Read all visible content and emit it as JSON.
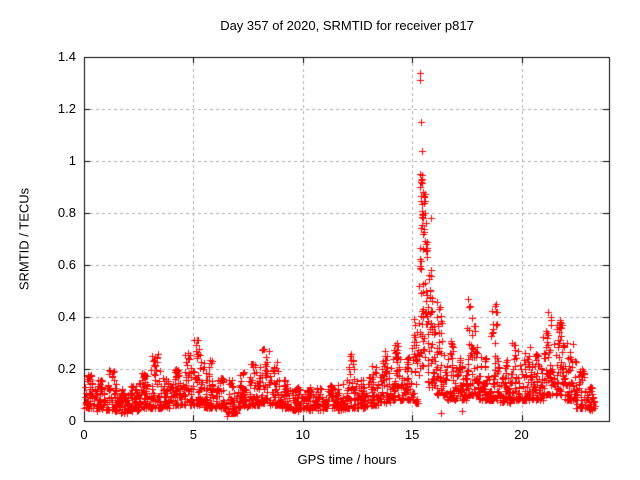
{
  "chart_data": {
    "type": "scatter",
    "title": "Day 357 of 2020, SRMTID for receiver p817",
    "xlabel": "GPS time / hours",
    "ylabel": "SRMTID / TECUs",
    "xlim": [
      0,
      24
    ],
    "ylim": [
      0,
      1.4
    ],
    "xticks": [
      0,
      5,
      10,
      15,
      20
    ],
    "xtick_labels": [
      "0",
      "5",
      "10",
      "15",
      "20"
    ],
    "yticks": [
      0,
      0.2,
      0.4,
      0.6,
      0.8,
      1.0,
      1.2,
      1.4
    ],
    "ytick_labels": [
      "0",
      "0.2",
      "0.4",
      "0.6",
      "0.8",
      "1",
      "1.2",
      "1.4"
    ],
    "grid": true,
    "legend": "none",
    "marker": "plus",
    "marker_size_px": 7,
    "colors": {
      "points": "#ff0000",
      "grid": "#b0b0b0",
      "axis": "#000000",
      "background": "#ffffff",
      "text": "#000000"
    },
    "seed": 7,
    "series": [
      {
        "name": "SRMTID",
        "representation": "density-bins",
        "bins_format": [
          "t_start_hours",
          "t_end_hours",
          "n_points",
          "y_min_TECU",
          "y_max_TECU",
          "skew_exponent"
        ],
        "bins": [
          [
            0.0,
            0.5,
            52,
            0.05,
            0.18,
            1.8
          ],
          [
            0.5,
            1.0,
            50,
            0.04,
            0.16,
            1.8
          ],
          [
            1.0,
            1.5,
            50,
            0.04,
            0.2,
            1.9
          ],
          [
            1.5,
            2.0,
            48,
            0.03,
            0.13,
            1.6
          ],
          [
            2.0,
            2.5,
            50,
            0.04,
            0.14,
            1.6
          ],
          [
            2.5,
            3.0,
            50,
            0.05,
            0.19,
            1.8
          ],
          [
            3.0,
            3.5,
            52,
            0.05,
            0.26,
            2.0
          ],
          [
            3.5,
            4.0,
            50,
            0.05,
            0.17,
            1.8
          ],
          [
            4.0,
            4.5,
            50,
            0.06,
            0.2,
            1.8
          ],
          [
            4.5,
            5.0,
            52,
            0.06,
            0.29,
            2.0
          ],
          [
            5.0,
            5.5,
            52,
            0.06,
            0.32,
            2.0
          ],
          [
            5.5,
            6.0,
            50,
            0.05,
            0.26,
            2.0
          ],
          [
            6.0,
            6.5,
            46,
            0.05,
            0.17,
            1.8
          ],
          [
            6.5,
            7.0,
            46,
            0.03,
            0.16,
            1.8
          ],
          [
            7.0,
            7.5,
            46,
            0.05,
            0.19,
            1.8
          ],
          [
            7.5,
            8.0,
            46,
            0.06,
            0.22,
            1.8
          ],
          [
            8.0,
            8.5,
            50,
            0.07,
            0.28,
            1.9
          ],
          [
            8.5,
            9.0,
            50,
            0.06,
            0.23,
            1.9
          ],
          [
            9.0,
            9.5,
            46,
            0.05,
            0.16,
            1.8
          ],
          [
            9.5,
            10.0,
            44,
            0.04,
            0.13,
            1.6
          ],
          [
            10.0,
            10.5,
            44,
            0.04,
            0.14,
            1.6
          ],
          [
            10.5,
            11.0,
            44,
            0.04,
            0.13,
            1.6
          ],
          [
            11.0,
            11.5,
            44,
            0.05,
            0.14,
            1.6
          ],
          [
            11.5,
            12.0,
            44,
            0.04,
            0.15,
            1.6
          ],
          [
            12.0,
            12.5,
            50,
            0.05,
            0.26,
            2.1
          ],
          [
            12.5,
            13.0,
            46,
            0.05,
            0.16,
            1.7
          ],
          [
            13.0,
            13.5,
            50,
            0.06,
            0.22,
            1.8
          ],
          [
            13.5,
            14.0,
            54,
            0.07,
            0.27,
            1.8
          ],
          [
            14.0,
            14.5,
            54,
            0.08,
            0.31,
            1.8
          ],
          [
            14.5,
            15.0,
            50,
            0.08,
            0.26,
            1.7
          ],
          [
            15.0,
            15.3,
            34,
            0.07,
            0.4,
            1.7
          ],
          [
            15.3,
            15.7,
            70,
            0.2,
            0.95,
            1.2
          ],
          [
            15.7,
            16.0,
            40,
            0.12,
            0.6,
            1.5
          ],
          [
            16.0,
            16.5,
            56,
            0.1,
            0.46,
            1.6
          ],
          [
            16.5,
            17.0,
            50,
            0.08,
            0.31,
            1.8
          ],
          [
            17.0,
            17.5,
            50,
            0.08,
            0.26,
            1.8
          ],
          [
            17.5,
            18.0,
            54,
            0.1,
            0.47,
            2.0
          ],
          [
            18.0,
            18.5,
            50,
            0.08,
            0.26,
            1.8
          ],
          [
            18.5,
            19.0,
            52,
            0.08,
            0.45,
            2.2
          ],
          [
            19.0,
            19.5,
            50,
            0.07,
            0.26,
            1.8
          ],
          [
            19.5,
            20.0,
            50,
            0.08,
            0.3,
            1.9
          ],
          [
            20.0,
            20.5,
            50,
            0.08,
            0.29,
            1.8
          ],
          [
            20.5,
            21.0,
            50,
            0.08,
            0.26,
            1.8
          ],
          [
            21.0,
            21.5,
            52,
            0.1,
            0.42,
            2.0
          ],
          [
            21.5,
            22.0,
            54,
            0.1,
            0.39,
            1.8
          ],
          [
            22.0,
            22.5,
            50,
            0.08,
            0.31,
            1.9
          ],
          [
            22.5,
            23.0,
            46,
            0.05,
            0.21,
            1.8
          ],
          [
            23.0,
            23.35,
            30,
            0.04,
            0.16,
            1.7
          ]
        ],
        "notable_points": [
          [
            15.35,
            1.34
          ],
          [
            15.37,
            1.31
          ],
          [
            15.4,
            1.15
          ],
          [
            15.43,
            1.04
          ],
          [
            15.38,
            0.95
          ],
          [
            15.45,
            0.93
          ],
          [
            15.34,
            0.9
          ],
          [
            15.5,
            0.88
          ],
          [
            15.55,
            0.84
          ],
          [
            15.58,
            0.8
          ],
          [
            15.62,
            0.76
          ],
          [
            15.48,
            0.72
          ],
          [
            15.65,
            0.68
          ],
          [
            15.7,
            0.63
          ],
          [
            15.75,
            0.56
          ],
          [
            15.8,
            0.5
          ],
          [
            15.85,
            0.78
          ],
          [
            6.55,
            0.02
          ],
          [
            16.3,
            0.03
          ],
          [
            17.3,
            0.04
          ],
          [
            17.55,
            0.47
          ],
          [
            17.62,
            0.44
          ],
          [
            18.85,
            0.45
          ],
          [
            18.9,
            0.42
          ],
          [
            19.55,
            0.3
          ],
          [
            21.2,
            0.42
          ],
          [
            21.78,
            0.39
          ],
          [
            21.85,
            0.37
          ],
          [
            5.05,
            0.31
          ],
          [
            14.3,
            0.3
          ],
          [
            12.15,
            0.25
          ],
          [
            8.45,
            0.27
          ],
          [
            3.1,
            0.25
          ],
          [
            22.1,
            0.3
          ]
        ]
      }
    ]
  }
}
